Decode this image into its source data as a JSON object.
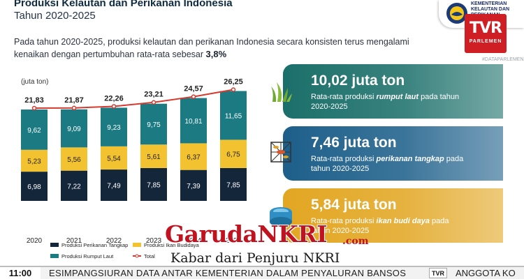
{
  "header": {
    "title": "Produksi Kelautan dan Perikanan Indonesia",
    "subtitle": "Tahun 2020-2025",
    "ministry_logo_text": "KEMENTERIAN KELAUTAN DAN PERIKANAN"
  },
  "intro": {
    "line1": "Pada tahun 2020-2025, produksi kelautan dan perikanan Indonesia secara konsisten terus mengalami",
    "line2": "kenaikan dengan pertumbuhan rata-rata sebesar ",
    "highlight": "3,8%"
  },
  "channel": {
    "logo_main": "TVR",
    "logo_sub": "PARLEMEN",
    "small_label": "#DATAPARLEMEN"
  },
  "chart_data": {
    "type": "bar",
    "stacked": true,
    "unit_label": "(juta ton)",
    "categories": [
      "2020",
      "2021",
      "2022",
      "2023",
      "2024",
      "2025"
    ],
    "series": [
      {
        "name": "Produksi Perikanan Tangkap",
        "color": "#14263a",
        "values": [
          6.98,
          7.22,
          7.49,
          7.85,
          7.39,
          7.85
        ],
        "labels": [
          "6,98",
          "7,22",
          "7,49",
          "7,85",
          "7,39",
          "7,85"
        ]
      },
      {
        "name": "Produksi Ikan Budidaya",
        "color": "#f2c230",
        "values": [
          5.23,
          5.56,
          5.54,
          5.61,
          6.37,
          6.75
        ],
        "labels": [
          "5,23",
          "5,56",
          "5,54",
          "5,61",
          "6,37",
          "6,75"
        ]
      },
      {
        "name": "Produksi Rumput Laut",
        "color": "#1b7a82",
        "values": [
          9.62,
          9.09,
          9.23,
          9.75,
          10.81,
          11.65
        ],
        "labels": [
          "9,62",
          "9,09",
          "9,23",
          "9,75",
          "10,81",
          "11,65"
        ]
      }
    ],
    "total": {
      "name": "Total",
      "color": "#d63a2e",
      "values": [
        21.83,
        21.87,
        22.26,
        23.21,
        24.57,
        26.25
      ],
      "labels": [
        "21,83",
        "21,87",
        "22,26",
        "23,21",
        "24,57",
        "26,25"
      ]
    },
    "ylim": [
      0,
      28
    ],
    "legend_position": "bottom"
  },
  "cards": [
    {
      "value": "10,02 juta ton",
      "desc_prefix": "Rata-rata produksi ",
      "desc_bold": "rumput laut",
      "desc_suffix": " pada tahun 2020-2025",
      "icon": "seaweed-icon",
      "color": "#1b6f6a"
    },
    {
      "value": "7,46 juta ton",
      "desc_prefix": "Rata-rata produksi ",
      "desc_bold": "perikanan tangkap",
      "desc_suffix": " pada tahun 2020-2025",
      "icon": "fishing-net-icon",
      "color": "#1d5f8a"
    },
    {
      "value": "5,84 juta ton",
      "desc_prefix": "Rata-rata produksi ",
      "desc_bold": "ikan budi daya",
      "desc_suffix": " pada tahun 2020-2025",
      "icon": "fish-farm-icon",
      "color": "#e2a622"
    }
  ],
  "watermark": {
    "title": "GarudaNKRI",
    "domain": ".com",
    "tagline": "Kabar dari Penjuru NKRI"
  },
  "ticker": {
    "time": "11:00",
    "headline": "ESIMPANGSIURAN DATA ANTAR KEMENTERIAN DALAM PENYALURAN BANSOS",
    "logo": "TVR",
    "headline2": "ANGGOTA KO"
  }
}
